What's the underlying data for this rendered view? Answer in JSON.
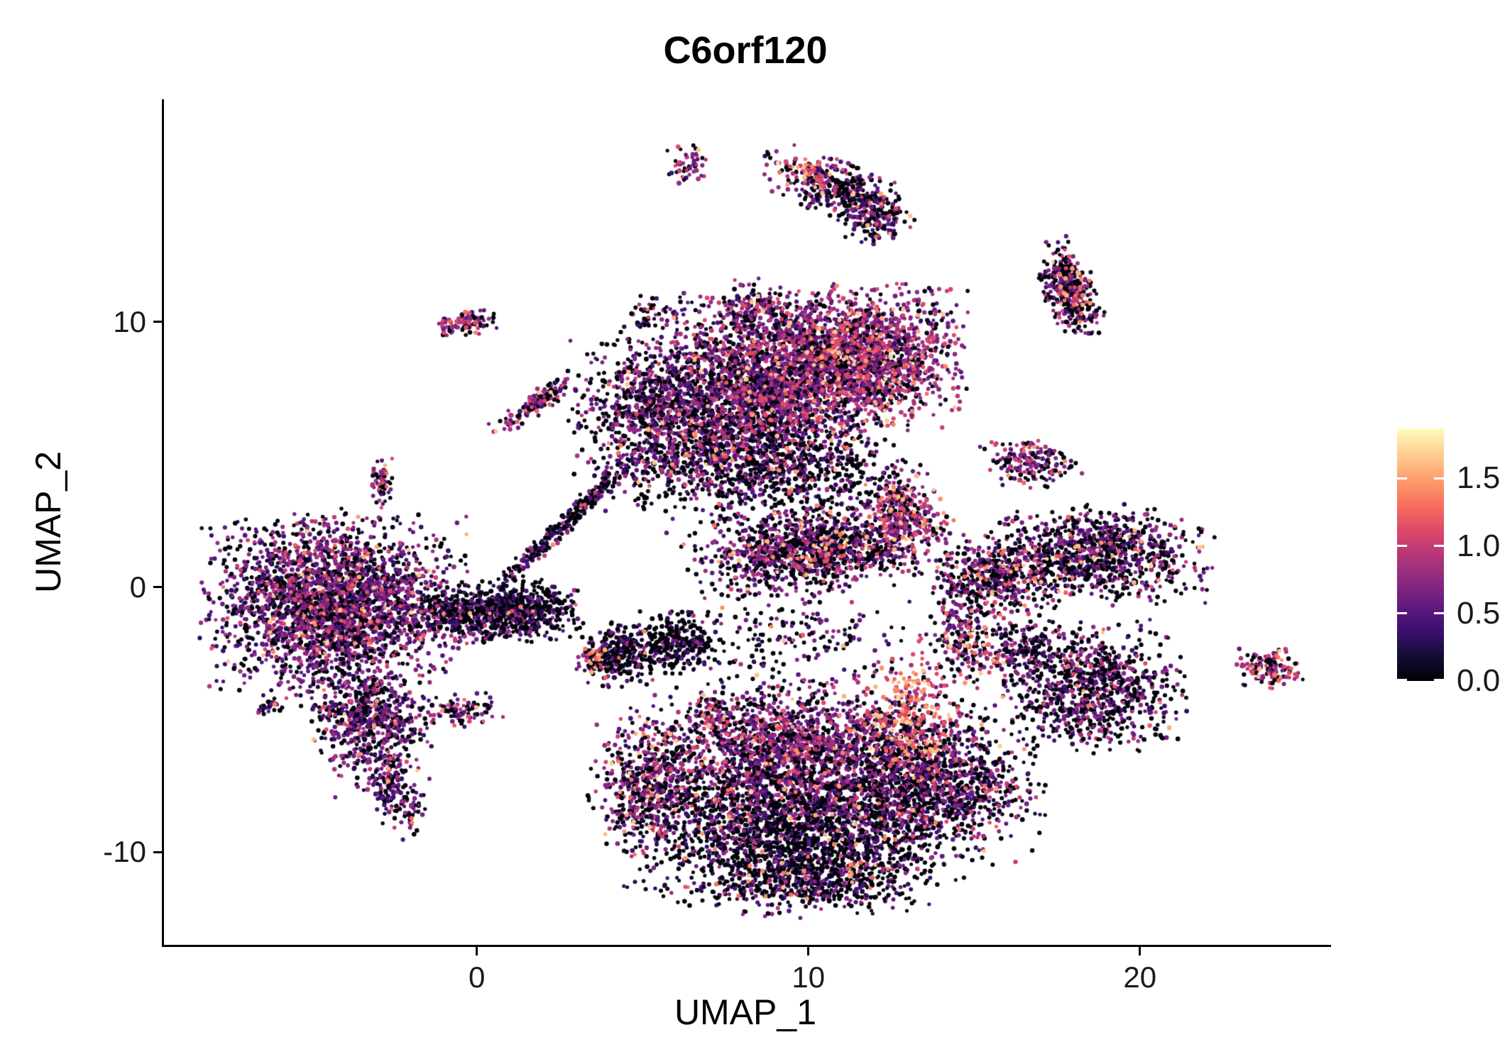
{
  "chart_data": {
    "type": "scatter",
    "title": "C6orf120",
    "xlabel": "UMAP_1",
    "ylabel": "UMAP_2",
    "xlim": [
      -9.5,
      25.7
    ],
    "ylim": [
      -13.5,
      18.4
    ],
    "x_ticks": [
      0,
      10,
      20
    ],
    "y_ticks": [
      -10,
      0,
      10
    ],
    "grid": false,
    "legend": {
      "type": "colorbar",
      "position": "right",
      "min": 0.0,
      "max": 1.87,
      "ticks": [
        0.0,
        0.5,
        1.0,
        1.5
      ],
      "tick_labels": [
        "0.0",
        "0.5",
        "1.0",
        "1.5"
      ]
    },
    "colormap": {
      "name": "magma",
      "stops": [
        [
          0.0,
          "#000004"
        ],
        [
          0.1,
          "#140E36"
        ],
        [
          0.2,
          "#3B0F70"
        ],
        [
          0.3,
          "#641A80"
        ],
        [
          0.4,
          "#8C2981"
        ],
        [
          0.5,
          "#B73779"
        ],
        [
          0.6,
          "#DE4968"
        ],
        [
          0.7,
          "#F7705C"
        ],
        [
          0.8,
          "#FE9F6D"
        ],
        [
          0.9,
          "#FECF92"
        ],
        [
          1.0,
          "#FCFDBF"
        ]
      ]
    },
    "points_model": {
      "seed": 42,
      "point_radius_px": [
        2.5,
        3.4
      ],
      "columns": [
        "cx",
        "cy",
        "sx",
        "sy",
        "rot_deg",
        "n",
        "frac_zero",
        "expr_mean",
        "expr_sd",
        "frac_high"
      ],
      "clusters": [
        [
          -4.4,
          -0.6,
          1.7,
          1.5,
          0,
          2600,
          0.3,
          0.65,
          0.25,
          0.02
        ],
        [
          -3.3,
          -5.0,
          0.8,
          1.1,
          15,
          650,
          0.35,
          0.6,
          0.25,
          0.02
        ],
        [
          -2.6,
          -7.6,
          0.4,
          0.8,
          25,
          170,
          0.4,
          0.55,
          0.25,
          0.02
        ],
        [
          -0.5,
          -1.0,
          1.0,
          0.5,
          0,
          420,
          0.5,
          0.5,
          0.22,
          0.01
        ],
        [
          1.3,
          -0.9,
          0.8,
          0.5,
          0,
          500,
          0.62,
          0.45,
          0.22,
          0.01
        ],
        [
          -6.4,
          -4.5,
          0.22,
          0.15,
          0,
          25,
          0.45,
          0.55,
          0.25,
          0.02
        ],
        [
          -0.45,
          -4.65,
          0.5,
          0.3,
          0,
          90,
          0.35,
          0.6,
          0.25,
          0.03
        ],
        [
          -2.9,
          3.9,
          0.15,
          0.4,
          0,
          60,
          0.3,
          0.7,
          0.25,
          0.05
        ],
        [
          -0.8,
          9.8,
          0.25,
          0.2,
          0,
          40,
          0.28,
          0.75,
          0.25,
          0.08
        ],
        [
          -0.1,
          10.0,
          0.3,
          0.2,
          0,
          55,
          0.28,
          0.75,
          0.25,
          0.08
        ],
        [
          1.8,
          7.0,
          0.75,
          0.18,
          42,
          140,
          0.3,
          0.75,
          0.25,
          0.06
        ],
        [
          2.6,
          2.4,
          1.6,
          0.15,
          51,
          280,
          0.55,
          0.5,
          0.22,
          0.01
        ],
        [
          5.3,
          6.4,
          1.1,
          1.5,
          0,
          900,
          0.4,
          0.6,
          0.25,
          0.02
        ],
        [
          8.3,
          7.3,
          1.6,
          1.6,
          0,
          2300,
          0.32,
          0.68,
          0.25,
          0.04
        ],
        [
          11.4,
          8.6,
          1.4,
          1.2,
          0,
          1900,
          0.22,
          0.75,
          0.25,
          0.06
        ],
        [
          8.3,
          4.4,
          1.5,
          1.0,
          0,
          500,
          0.6,
          0.5,
          0.25,
          0.02
        ],
        [
          8.2,
          10.5,
          0.5,
          0.5,
          0,
          130,
          0.3,
          0.7,
          0.25,
          0.03
        ],
        [
          5.5,
          10.3,
          0.5,
          0.4,
          0,
          50,
          0.4,
          0.6,
          0.25,
          0.03
        ],
        [
          10.2,
          1.4,
          1.7,
          0.7,
          8,
          1250,
          0.38,
          0.65,
          0.25,
          0.05
        ],
        [
          12.9,
          2.9,
          0.5,
          0.7,
          30,
          250,
          0.25,
          0.8,
          0.25,
          0.12
        ],
        [
          10.8,
          4.3,
          1.2,
          0.7,
          0,
          220,
          0.6,
          0.5,
          0.25,
          0.02
        ],
        [
          9.6,
          -1.9,
          1.5,
          0.8,
          0,
          170,
          0.58,
          0.52,
          0.25,
          0.03
        ],
        [
          4.2,
          -2.5,
          0.5,
          0.55,
          0,
          260,
          0.6,
          0.45,
          0.25,
          0.03
        ],
        [
          3.5,
          -2.7,
          0.25,
          0.35,
          0,
          60,
          0.2,
          0.85,
          0.25,
          0.15
        ],
        [
          6.0,
          -2.1,
          0.6,
          0.5,
          0,
          320,
          0.68,
          0.4,
          0.25,
          0.01
        ],
        [
          7.0,
          -4.65,
          0.3,
          0.3,
          0,
          60,
          0.25,
          0.8,
          0.25,
          0.1
        ],
        [
          9.2,
          -6.4,
          1.8,
          1.3,
          0,
          1900,
          0.33,
          0.68,
          0.25,
          0.03
        ],
        [
          9.4,
          -9.4,
          2.2,
          1.1,
          0,
          1700,
          0.62,
          0.5,
          0.25,
          0.03
        ],
        [
          13.5,
          -7.4,
          1.5,
          1.3,
          0,
          1400,
          0.45,
          0.6,
          0.25,
          0.03
        ],
        [
          5.2,
          -7.4,
          0.8,
          1.2,
          0,
          550,
          0.35,
          0.65,
          0.25,
          0.09
        ],
        [
          10.0,
          -11.2,
          1.6,
          0.55,
          0,
          450,
          0.55,
          0.5,
          0.25,
          0.04
        ],
        [
          13.0,
          -4.9,
          0.7,
          1.1,
          0,
          300,
          0.15,
          1.0,
          0.3,
          0.35
        ],
        [
          14.7,
          -1.8,
          0.6,
          1.0,
          0,
          250,
          0.4,
          0.7,
          0.25,
          0.1
        ],
        [
          15.6,
          0.4,
          0.8,
          0.7,
          0,
          420,
          0.4,
          0.65,
          0.25,
          0.08
        ],
        [
          18.6,
          1.2,
          1.5,
          0.8,
          0,
          950,
          0.45,
          0.6,
          0.25,
          0.04
        ],
        [
          18.5,
          -3.8,
          1.2,
          1.1,
          0,
          850,
          0.5,
          0.6,
          0.25,
          0.03
        ],
        [
          16.6,
          -2.3,
          0.6,
          0.6,
          0,
          150,
          0.45,
          0.6,
          0.25,
          0.03
        ],
        [
          23.8,
          -3.1,
          0.45,
          0.35,
          0,
          130,
          0.25,
          0.8,
          0.25,
          0.1
        ],
        [
          16.6,
          4.7,
          0.7,
          0.4,
          0,
          170,
          0.35,
          0.7,
          0.25,
          0.05
        ],
        [
          6.3,
          15.9,
          0.3,
          0.35,
          0,
          50,
          0.3,
          0.75,
          0.25,
          0.08
        ],
        [
          10.9,
          15.0,
          1.1,
          0.45,
          -28,
          380,
          0.45,
          0.6,
          0.25,
          0.06
        ],
        [
          11.9,
          13.9,
          0.45,
          0.45,
          0,
          120,
          0.5,
          0.55,
          0.25,
          0.04
        ],
        [
          10.0,
          15.7,
          0.3,
          0.25,
          0,
          40,
          0.1,
          1.0,
          0.3,
          0.3
        ],
        [
          17.8,
          11.2,
          0.35,
          0.85,
          18,
          380,
          0.4,
          0.65,
          0.25,
          0.08
        ]
      ]
    }
  },
  "colors": {
    "background": "#FFFFFF",
    "axis_line": "#000000",
    "axis_text": "#1A1A1A",
    "title_text": "#000000"
  }
}
